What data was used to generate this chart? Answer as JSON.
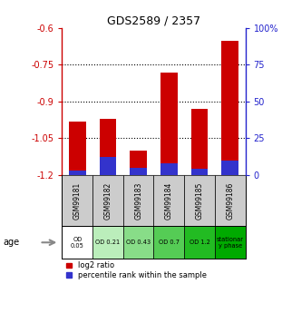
{
  "title": "GDS2589 / 2357",
  "samples": [
    "GSM99181",
    "GSM99182",
    "GSM99183",
    "GSM99184",
    "GSM99185",
    "GSM99186"
  ],
  "log2_ratio": [
    -0.98,
    -0.97,
    -1.1,
    -0.78,
    -0.93,
    -0.65
  ],
  "percentile_rank": [
    3,
    12,
    5,
    8,
    4,
    10
  ],
  "left_ylim": [
    -1.2,
    -0.6
  ],
  "left_yticks": [
    -1.2,
    -1.05,
    -0.9,
    -0.75,
    -0.6
  ],
  "left_yticklabels": [
    "-1.2",
    "-1.05",
    "-0.9",
    "-0.75",
    "-0.6"
  ],
  "right_ylim": [
    0,
    100
  ],
  "right_yticks": [
    0,
    25,
    50,
    75,
    100
  ],
  "right_yticklabels": [
    "0",
    "25",
    "50",
    "75",
    "100%"
  ],
  "bar_color_red": "#cc0000",
  "bar_color_blue": "#3333cc",
  "bar_width": 0.55,
  "age_labels": [
    "OD\n0.05",
    "OD 0.21",
    "OD 0.43",
    "OD 0.7",
    "OD 1.2",
    "stationar\ny phase"
  ],
  "age_colors": [
    "#ffffff",
    "#bbeebb",
    "#88dd88",
    "#55cc55",
    "#22bb22",
    "#00aa00"
  ],
  "age_label": "age",
  "legend_red": "log2 ratio",
  "legend_blue": "percentile rank within the sample",
  "left_axis_color": "#cc0000",
  "right_axis_color": "#2222cc",
  "sample_bg_color": "#cccccc",
  "figsize": [
    3.11,
    3.45
  ],
  "dpi": 100
}
